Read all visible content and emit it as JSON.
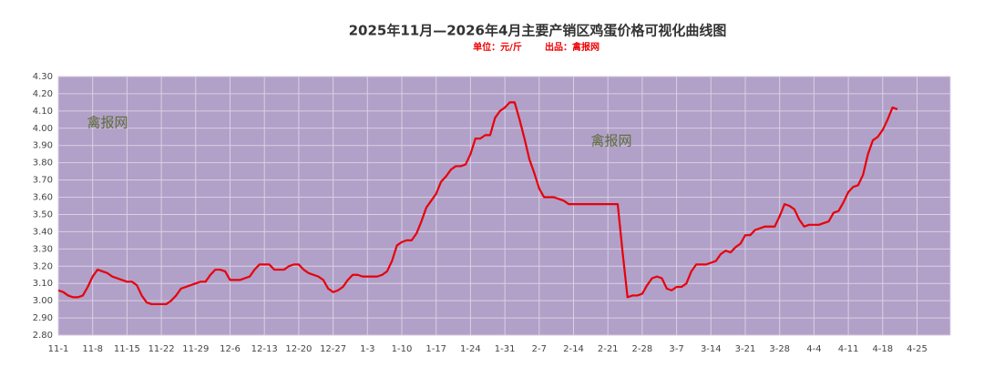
{
  "chart_data": {
    "type": "line",
    "title": "2025年11月—2026年4月主要产销区鸡蛋价格可视化曲线图",
    "subtitle": [
      "单位：元/斤",
      "出品：禽报网"
    ],
    "annotations": [
      "禽报网",
      "禽报网"
    ],
    "categories": [
      "11-1",
      null,
      null,
      null,
      null,
      null,
      null,
      "11-8",
      null,
      null,
      null,
      null,
      null,
      null,
      "11-15",
      null,
      null,
      null,
      null,
      null,
      null,
      "11-22",
      null,
      null,
      null,
      null,
      null,
      null,
      "11-29",
      null,
      null,
      null,
      null,
      null,
      null,
      "12-6",
      null,
      null,
      null,
      null,
      null,
      null,
      "12-13",
      null,
      null,
      null,
      null,
      null,
      null,
      "12-20",
      null,
      null,
      null,
      null,
      null,
      null,
      "12-27",
      null,
      null,
      null,
      null,
      null,
      null,
      "1-3",
      null,
      null,
      null,
      null,
      null,
      null,
      "1-10",
      null,
      null,
      null,
      null,
      null,
      null,
      "1-17",
      null,
      null,
      null,
      null,
      null,
      null,
      "1-24",
      null,
      null,
      null,
      null,
      null,
      null,
      "1-31",
      null,
      null,
      null,
      null,
      null,
      null,
      "2-7",
      null,
      null,
      null,
      null,
      null,
      null,
      "2-14",
      null,
      null,
      null,
      null,
      null,
      null,
      "2-21",
      null,
      null,
      null,
      null,
      null,
      null,
      "2-28",
      null,
      null,
      null,
      null,
      null,
      null,
      "3-7",
      null,
      null,
      null,
      null,
      null,
      null,
      "3-14",
      null,
      null,
      null,
      null,
      null,
      null,
      "3-21",
      null,
      null,
      null,
      null,
      null,
      null,
      "3-28",
      null,
      null,
      null,
      null,
      null,
      null,
      "4-4",
      null,
      null,
      null,
      null,
      null,
      null,
      "4-11",
      null,
      null,
      null,
      null,
      null,
      null,
      "4-18",
      null,
      null,
      null,
      null,
      null,
      null,
      "4-25"
    ],
    "series": [
      {
        "color": "#e8000b",
        "values": [
          3.06,
          3.05,
          3.03,
          3.02,
          3.02,
          3.03,
          3.08,
          3.14,
          3.18,
          3.17,
          3.16,
          3.14,
          3.13,
          3.12,
          3.11,
          3.11,
          3.09,
          3.03,
          2.99,
          2.98,
          2.98,
          2.98,
          2.98,
          3.0,
          3.03,
          3.07,
          3.08,
          3.09,
          3.1,
          3.11,
          3.11,
          3.15,
          3.18,
          3.18,
          3.17,
          3.12,
          3.12,
          3.12,
          3.13,
          3.14,
          3.18,
          3.21,
          3.21,
          3.21,
          3.18,
          3.18,
          3.18,
          3.2,
          3.21,
          3.21,
          3.18,
          3.16,
          3.15,
          3.14,
          3.12,
          3.07,
          3.05,
          3.06,
          3.08,
          3.12,
          3.15,
          3.15,
          3.14,
          3.14,
          3.14,
          3.14,
          3.15,
          3.17,
          3.23,
          3.32,
          3.34,
          3.35,
          3.35,
          3.39,
          3.46,
          3.54,
          3.58,
          3.62,
          3.69,
          3.72,
          3.76,
          3.78,
          3.78,
          3.79,
          3.85,
          3.94,
          3.94,
          3.96,
          3.96,
          4.06,
          4.1,
          4.12,
          4.15,
          4.15,
          4.05,
          3.94,
          3.82,
          3.74,
          3.65,
          3.6,
          3.6,
          3.6,
          3.59,
          3.58,
          3.56,
          3.56,
          3.56,
          3.56,
          3.56,
          3.56,
          3.56,
          3.56,
          3.56,
          3.56,
          3.56,
          3.28,
          3.02,
          3.03,
          3.03,
          3.04,
          3.09,
          3.13,
          3.14,
          3.13,
          3.07,
          3.06,
          3.08,
          3.08,
          3.1,
          3.17,
          3.21,
          3.21,
          3.21,
          3.22,
          3.23,
          3.27,
          3.29,
          3.28,
          3.31,
          3.33,
          3.38,
          3.38,
          3.41,
          3.42,
          3.43,
          3.43,
          3.43,
          3.49,
          3.56,
          3.55,
          3.53,
          3.47,
          3.43,
          3.44,
          3.44,
          3.44,
          3.45,
          3.46,
          3.51,
          3.52,
          3.57,
          3.63,
          3.66,
          3.67,
          3.73,
          3.85,
          3.93,
          3.95,
          3.99,
          4.05,
          4.12,
          4.11,
          null,
          null,
          null,
          null
        ]
      }
    ],
    "ylim": [
      2.8,
      4.3
    ],
    "yticks": [
      {
        "value": 2.8,
        "label": "2.80"
      },
      {
        "value": 2.9,
        "label": "2.90"
      },
      {
        "value": 3.0,
        "label": "3.00"
      },
      {
        "value": 3.1,
        "label": "3.10"
      },
      {
        "value": 3.2,
        "label": "3.20"
      },
      {
        "value": 3.3,
        "label": "3.30"
      },
      {
        "value": 3.4,
        "label": "3.40"
      },
      {
        "value": 3.5,
        "label": "3.50"
      },
      {
        "value": 3.6,
        "label": "3.60"
      },
      {
        "value": 3.7,
        "label": "3.70"
      },
      {
        "value": 3.8,
        "label": "3.80"
      },
      {
        "value": 3.9,
        "label": "3.90"
      },
      {
        "value": 4.0,
        "label": "4.00"
      },
      {
        "value": 4.1,
        "label": "4.10"
      },
      {
        "value": 4.2,
        "label": "4.20"
      },
      {
        "value": 4.3,
        "label": "4.30"
      }
    ],
    "grid": true,
    "background": "#b1a0c7"
  }
}
